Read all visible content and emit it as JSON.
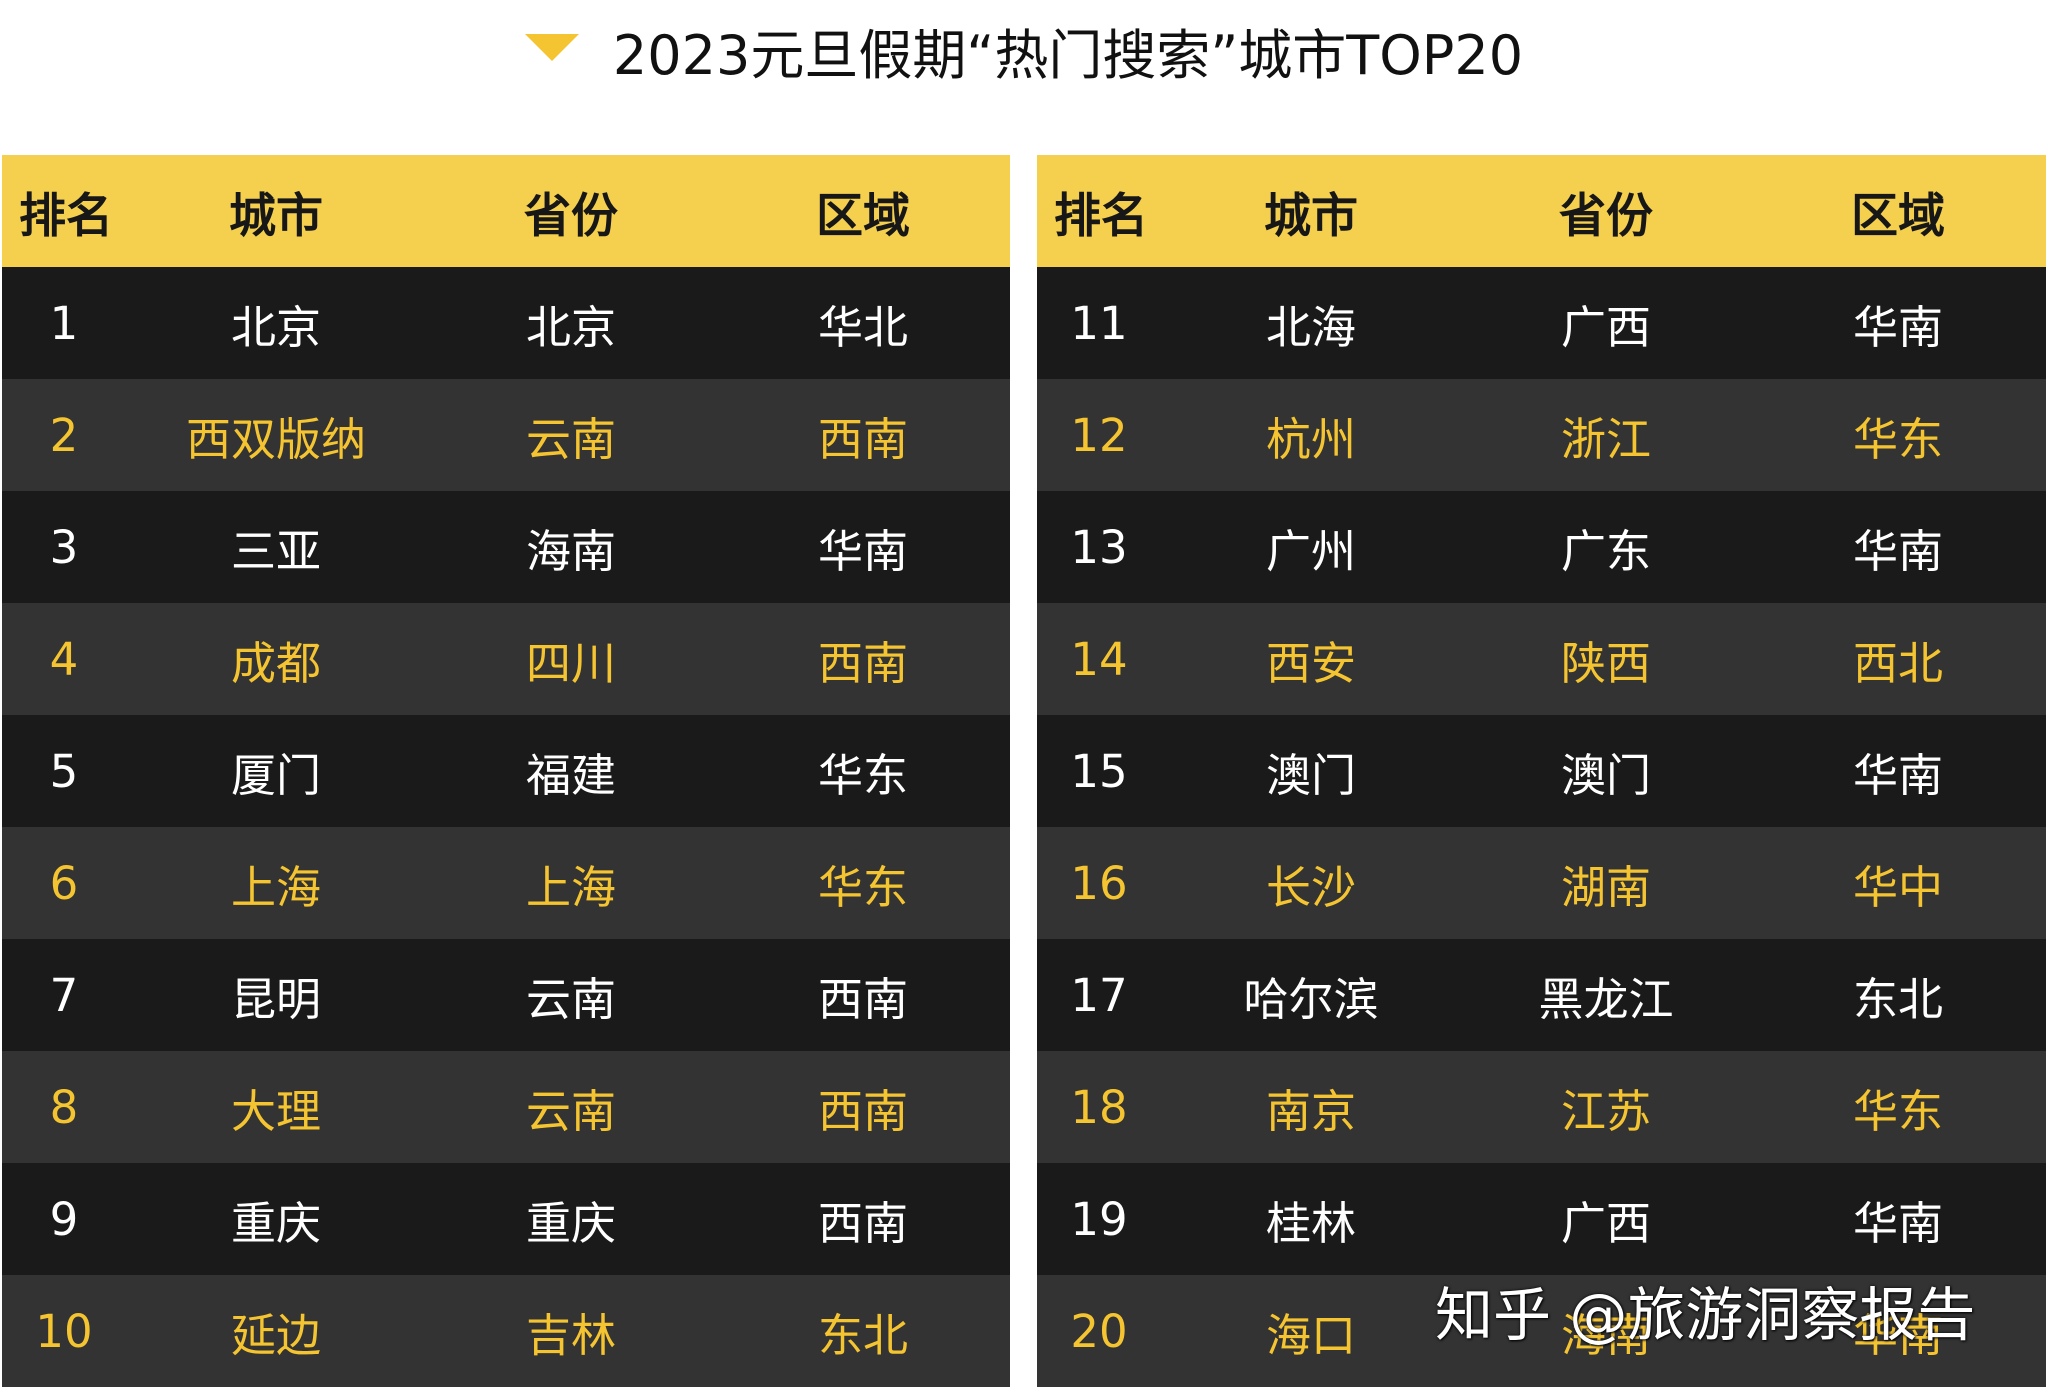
{
  "title": "2023元旦假期“热门搜索”城市TOP20",
  "colors": {
    "header_bg": "#f5d04f",
    "row_dark": "#1a1a1a",
    "row_alt": "#333333",
    "accent_text": "#f5c431",
    "icon": "#f5c431"
  },
  "title_icon": "triangle-down-icon",
  "chart_data": {
    "type": "table",
    "title": "2023元旦假期“热门搜索”城市TOP20",
    "columns": [
      "排名",
      "城市",
      "省份",
      "区域"
    ],
    "rows": [
      [
        "1",
        "北京",
        "北京",
        "华北"
      ],
      [
        "2",
        "西双版纳",
        "云南",
        "西南"
      ],
      [
        "3",
        "三亚",
        "海南",
        "华南"
      ],
      [
        "4",
        "成都",
        "四川",
        "西南"
      ],
      [
        "5",
        "厦门",
        "福建",
        "华东"
      ],
      [
        "6",
        "上海",
        "上海",
        "华东"
      ],
      [
        "7",
        "昆明",
        "云南",
        "西南"
      ],
      [
        "8",
        "大理",
        "云南",
        "西南"
      ],
      [
        "9",
        "重庆",
        "重庆",
        "西南"
      ],
      [
        "10",
        "延边",
        "吉林",
        "东北"
      ],
      [
        "11",
        "北海",
        "广西",
        "华南"
      ],
      [
        "12",
        "杭州",
        "浙江",
        "华东"
      ],
      [
        "13",
        "广州",
        "广东",
        "华南"
      ],
      [
        "14",
        "西安",
        "陕西",
        "西北"
      ],
      [
        "15",
        "澳门",
        "澳门",
        "华南"
      ],
      [
        "16",
        "长沙",
        "湖南",
        "华中"
      ],
      [
        "17",
        "哈尔滨",
        "黑龙江",
        "东北"
      ],
      [
        "18",
        "南京",
        "江苏",
        "华东"
      ],
      [
        "19",
        "桂林",
        "广西",
        "华南"
      ],
      [
        "20",
        "海口",
        "海南",
        "华南"
      ]
    ]
  },
  "watermark": "知乎 @旅游洞察报告"
}
